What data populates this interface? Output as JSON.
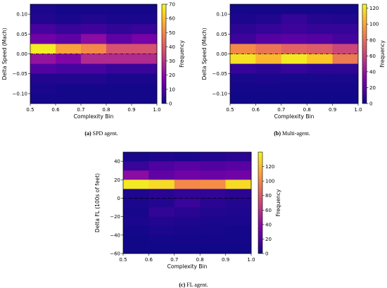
{
  "chart_data": [
    {
      "type": "heatmap",
      "caption_letter": "(a)",
      "caption_text": " SPD agent.",
      "xlabel": "Complexity Bin",
      "ylabel": "Delta Speed (Mach)",
      "colorbar_label": "Frequency",
      "x_edges": [
        0.5,
        0.6,
        0.7,
        0.8,
        0.9,
        1.0
      ],
      "x_ticks": [
        "0.5",
        "0.6",
        "0.7",
        "0.8",
        "0.9",
        "1.0"
      ],
      "y_range": [
        -0.125,
        0.125
      ],
      "y_ticks": [
        -0.1,
        -0.05,
        0.0,
        0.05,
        0.1
      ],
      "y_tick_labels": [
        "−0.10",
        "−0.05",
        "0.00",
        "0.05",
        "0.10"
      ],
      "y_row_edges": [
        0.125,
        0.1,
        0.075,
        0.05,
        0.025,
        0.0,
        -0.025,
        -0.05,
        -0.075,
        -0.1,
        -0.125
      ],
      "z": [
        [
          2,
          1,
          1,
          1,
          1
        ],
        [
          3,
          2,
          3,
          2,
          2
        ],
        [
          8,
          6,
          7,
          5,
          6
        ],
        [
          15,
          12,
          20,
          12,
          16
        ],
        [
          68,
          55,
          50,
          38,
          38
        ],
        [
          22,
          18,
          28,
          28,
          28
        ],
        [
          10,
          8,
          8,
          6,
          6
        ],
        [
          3,
          3,
          3,
          2,
          2
        ],
        [
          2,
          1,
          1,
          1,
          1
        ],
        [
          1,
          1,
          1,
          1,
          1
        ]
      ],
      "colorbar_range": [
        0,
        70
      ],
      "colorbar_ticks": [
        0,
        10,
        20,
        30,
        40,
        50,
        60,
        70
      ],
      "zero_line": true
    },
    {
      "type": "heatmap",
      "caption_letter": "(b)",
      "caption_text": " Multi-agent.",
      "xlabel": "Complexity Bin",
      "ylabel": "Delta Speed (Mach)",
      "colorbar_label": "Frequency",
      "x_edges": [
        0.5,
        0.6,
        0.7,
        0.8,
        0.9,
        1.0
      ],
      "x_ticks": [
        "0.5",
        "0.6",
        "0.7",
        "0.8",
        "0.9",
        "1.0"
      ],
      "y_range": [
        -0.125,
        0.125
      ],
      "y_ticks": [
        -0.1,
        -0.05,
        0.0,
        0.05,
        0.1
      ],
      "y_tick_labels": [
        "−0.10",
        "−0.05",
        "0.00",
        "0.05",
        "0.10"
      ],
      "y_row_edges": [
        0.125,
        0.1,
        0.075,
        0.05,
        0.025,
        0.0,
        -0.025,
        -0.05,
        -0.075,
        -0.1,
        -0.125
      ],
      "z": [
        [
          2,
          2,
          2,
          2,
          2
        ],
        [
          4,
          5,
          10,
          6,
          5
        ],
        [
          8,
          10,
          12,
          10,
          10
        ],
        [
          12,
          18,
          20,
          18,
          14
        ],
        [
          90,
          82,
          75,
          72,
          62
        ],
        [
          118,
          105,
          120,
          110,
          84
        ],
        [
          10,
          8,
          10,
          8,
          8
        ],
        [
          3,
          4,
          3,
          3,
          3
        ],
        [
          2,
          2,
          2,
          2,
          2
        ],
        [
          1,
          1,
          1,
          1,
          1
        ]
      ],
      "colorbar_range": [
        0,
        125
      ],
      "colorbar_ticks": [
        0,
        20,
        40,
        60,
        80,
        100,
        120
      ],
      "zero_line": true
    },
    {
      "type": "heatmap",
      "caption_letter": "(c)",
      "caption_text": " FL agent.",
      "xlabel": "Complexity Bin",
      "ylabel": "Delta FL (100s of feet)",
      "colorbar_label": "Frequency",
      "x_edges": [
        0.5,
        0.6,
        0.7,
        0.8,
        0.9,
        1.0
      ],
      "x_ticks": [
        "0.5",
        "0.6",
        "0.7",
        "0.8",
        "0.9",
        "1.0"
      ],
      "y_range": [
        -60,
        50
      ],
      "y_ticks": [
        -60,
        -40,
        -20,
        0,
        20,
        40
      ],
      "y_tick_labels": [
        "−60",
        "−40",
        "−20",
        "0",
        "20",
        "40"
      ],
      "y_row_edges": [
        50,
        40,
        30,
        20,
        10,
        0,
        -10,
        -20,
        -30,
        -40,
        -50,
        -60
      ],
      "z": [
        [
          3,
          5,
          4,
          6,
          8
        ],
        [
          12,
          18,
          22,
          20,
          22
        ],
        [
          40,
          25,
          30,
          28,
          30
        ],
        [
          135,
          130,
          100,
          102,
          130
        ],
        [
          5,
          8,
          10,
          10,
          8
        ],
        [
          4,
          6,
          12,
          8,
          6
        ],
        [
          3,
          10,
          8,
          6,
          5
        ],
        [
          4,
          6,
          5,
          4,
          4
        ],
        [
          2,
          4,
          3,
          3,
          2
        ],
        [
          1,
          2,
          2,
          2,
          2
        ],
        [
          1,
          1,
          1,
          1,
          1
        ]
      ],
      "colorbar_range": [
        0,
        140
      ],
      "colorbar_ticks": [
        0,
        20,
        40,
        60,
        80,
        100,
        120
      ],
      "zero_line": true
    }
  ]
}
